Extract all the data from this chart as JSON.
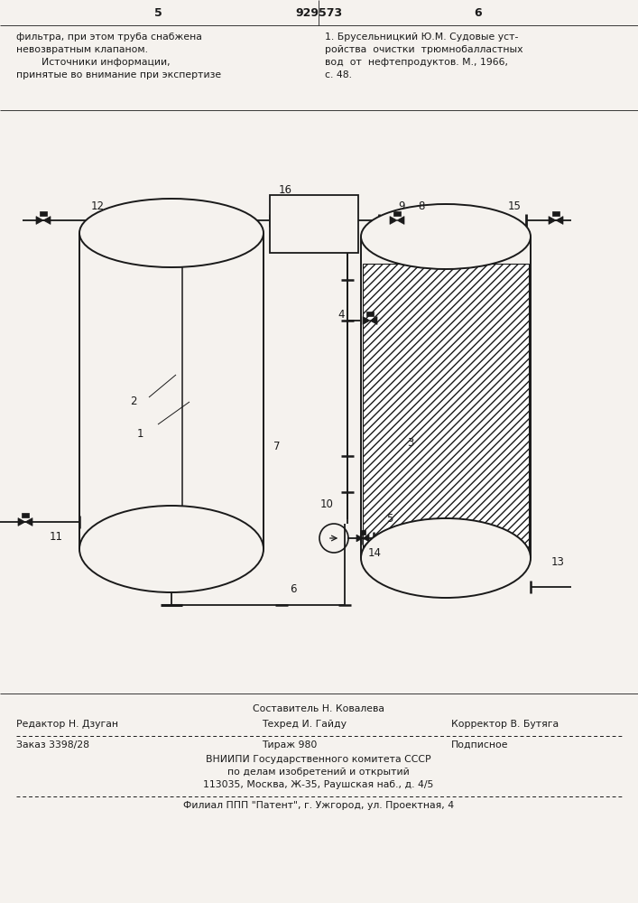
{
  "bg_color": "#f5f2ee",
  "line_color": "#1a1a1a",
  "page_num_left": "5",
  "page_num_center": "929573",
  "page_num_right": "6",
  "tl1": "фильтра, при этом труба снабжена",
  "tl2": "невозвратным клапаном.",
  "tl3": "        Источники информации,",
  "tl4": "принятые во внимание при экспертизе",
  "tr1": "1. Брусельницкий Ю.М. Судовые уст-",
  "tr2": "ройства  очистки  трюмнобалластных",
  "tr3": "вод  от  нефтепродуктов. М., 1966,",
  "tr4": "с. 48.",
  "b_sost": "Составитель Н. Ковалева",
  "b_red": "Редактор Н. Дзуган",
  "b_tech": "Техред И. Гайду",
  "b_corr": "Корректор В. Бутяга",
  "b_zakaz": "Заказ 3398/28",
  "b_tirazh": "Тираж 980",
  "b_podp": "Подписное",
  "b_vniip1": "ВНИИПИ Государственного комитета СССР",
  "b_vniip2": "по делам изобретений и открытий",
  "b_vniip3": "113035, Москва, Ж-35, Раушская наб., д. 4/5",
  "b_filial": "Филиал ППП \"Патент\", г. Ужгород, ул. Проектная, 4"
}
